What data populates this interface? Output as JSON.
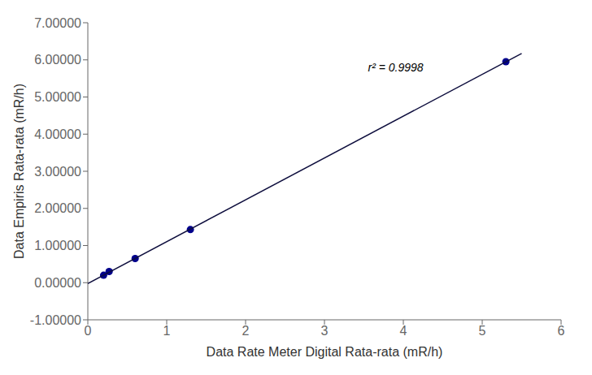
{
  "chart_data": {
    "type": "scatter",
    "xlabel": "Data Rate Meter Digital Rata-rata (mR/h)",
    "ylabel": "Data Empiris Rata-rata (mR/h)",
    "annotations": [
      {
        "text": "r² = 0.9998"
      }
    ],
    "series": [
      {
        "type": "scatter",
        "x": [
          0.2,
          0.27,
          0.6,
          1.3,
          5.3
        ],
        "values": [
          0.2,
          0.3,
          0.65,
          1.43,
          5.95
        ],
        "color": "#00008B"
      },
      {
        "type": "line",
        "x": [
          0.0,
          5.5
        ],
        "values": [
          -0.02157,
          6.17246
        ],
        "color": "#0d0d3d"
      }
    ],
    "xlim": [
      0,
      6
    ],
    "ylim": [
      -1.0,
      7.0
    ],
    "xticks": [
      0,
      1,
      2,
      3,
      4,
      5,
      6
    ],
    "yticks": [
      {
        "value": -1.0,
        "label": "-1.00000"
      },
      {
        "value": 0.0,
        "label": "0.00000"
      },
      {
        "value": 1.0,
        "label": "1.00000"
      },
      {
        "value": 2.0,
        "label": "2.00000"
      },
      {
        "value": 3.0,
        "label": "3.00000"
      },
      {
        "value": 4.0,
        "label": "4.00000"
      },
      {
        "value": 5.0,
        "label": "5.00000"
      },
      {
        "value": 6.0,
        "label": "6.00000"
      },
      {
        "value": 7.0,
        "label": "7.00000"
      }
    ],
    "grid": false
  }
}
